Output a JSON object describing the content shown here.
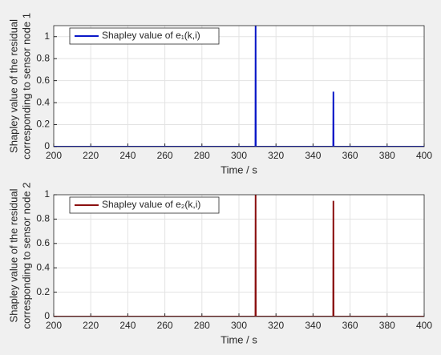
{
  "chart_data": [
    {
      "type": "line",
      "ylabel": [
        "Shapley value of the residual",
        "corresponding to sensor node 1"
      ],
      "xlabel": "Time / s",
      "x": [
        200,
        308.9,
        309,
        309.1,
        350.9,
        351,
        351.1,
        400
      ],
      "series": [
        {
          "name": "Shapley value of e₁(k,i)",
          "color": "#0a18c8",
          "values": [
            0,
            0,
            1.1,
            0,
            0,
            0.5,
            0,
            0
          ]
        }
      ],
      "xlim": [
        200,
        400
      ],
      "xticks": [
        200,
        220,
        240,
        260,
        280,
        300,
        320,
        340,
        360,
        380,
        400
      ],
      "ylim": [
        0,
        1.1
      ],
      "yticks": [
        0,
        0.2,
        0.4,
        0.6,
        0.8,
        1
      ],
      "grid": true,
      "legend": "top-left"
    },
    {
      "type": "line",
      "ylabel": [
        "Shapley value of the residual",
        "corresponding to sensor node 2"
      ],
      "xlabel": "Time / s",
      "x": [
        200,
        308.9,
        309,
        309.1,
        350.9,
        351,
        351.1,
        400
      ],
      "series": [
        {
          "name": "Shapley value of e₂(k,i)",
          "color": "#8b1010",
          "values": [
            0,
            0,
            1,
            0,
            0,
            0.95,
            0,
            0
          ]
        }
      ],
      "xlim": [
        200,
        400
      ],
      "xticks": [
        200,
        220,
        240,
        260,
        280,
        300,
        320,
        340,
        360,
        380,
        400
      ],
      "ylim": [
        0,
        1
      ],
      "yticks": [
        0,
        0.2,
        0.4,
        0.6,
        0.8,
        1
      ],
      "grid": true,
      "legend": "top-left"
    }
  ]
}
